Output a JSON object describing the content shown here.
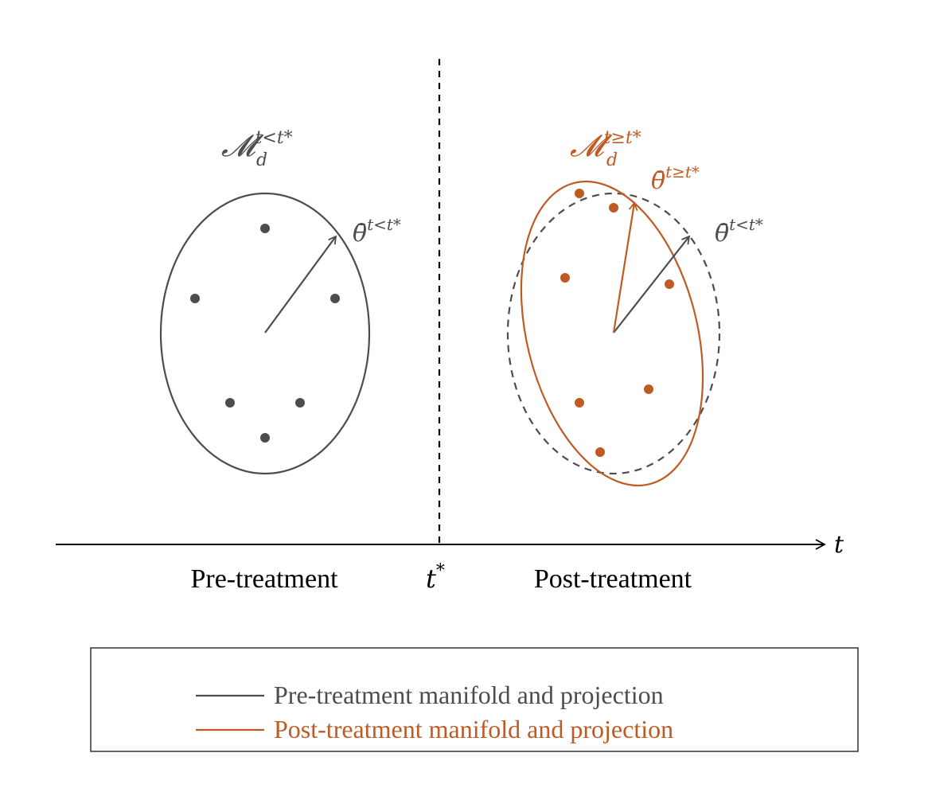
{
  "colors": {
    "pre": "#4d4d4d",
    "post": "#bf5a25",
    "axis": "#000000",
    "background": "#ffffff"
  },
  "pre_manifold": {
    "symbol": "𝓜",
    "subscript": "d",
    "superscript": "t<t*",
    "projection_label": "θ̄",
    "projection_sup": "t<t*"
  },
  "post_manifold": {
    "symbol": "𝓜",
    "subscript": "d",
    "superscript": "t≥t*",
    "projection_label": "θ̄",
    "projection_sup": "t≥t*",
    "reference_projection_label": "θ̄",
    "reference_projection_sup": "t<t*"
  },
  "timeline": {
    "axis_label": "t",
    "cut_label": "t",
    "cut_sup": "*",
    "left_region_label": "Pre-treatment",
    "right_region_label": "Post-treatment"
  },
  "legend": {
    "items": [
      {
        "label": "Pre-treatment manifold and projection",
        "color": "#4d4d4d"
      },
      {
        "label": "Post-treatment manifold and projection",
        "color": "#bf5a25"
      }
    ]
  }
}
